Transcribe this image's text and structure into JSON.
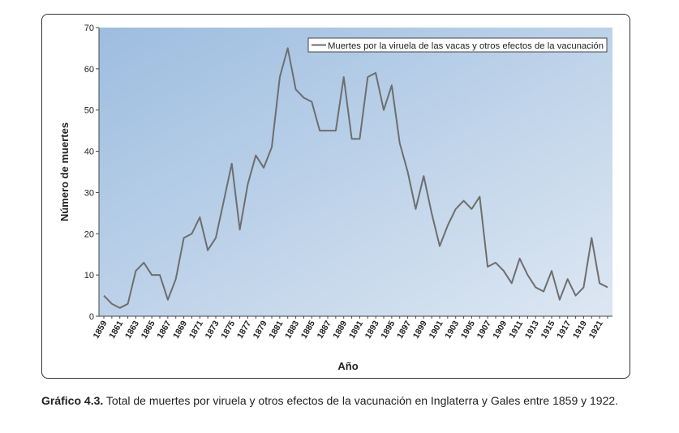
{
  "chart_data": {
    "type": "line",
    "legend": "Muertes por la viruela de las vacas y otros efectos de la vacunación",
    "legend_position": "top-right",
    "xlabel": "Año",
    "ylabel": "Número de muertes",
    "ylim": [
      0,
      70
    ],
    "yticks": [
      0,
      10,
      20,
      30,
      40,
      50,
      60,
      70
    ],
    "xticks": [
      "1859",
      "1861",
      "1863",
      "1865",
      "1867",
      "1869",
      "1871",
      "1873",
      "1875",
      "1877",
      "1879",
      "1881",
      "1883",
      "1885",
      "1887",
      "1889",
      "1891",
      "1893",
      "1895",
      "1897",
      "1899",
      "1901",
      "1903",
      "1905",
      "1907",
      "1909",
      "1911",
      "1913",
      "1915",
      "1917",
      "1919",
      "1921"
    ],
    "x": [
      1859,
      1860,
      1861,
      1862,
      1863,
      1864,
      1865,
      1866,
      1867,
      1868,
      1869,
      1870,
      1871,
      1872,
      1873,
      1874,
      1875,
      1876,
      1877,
      1878,
      1879,
      1880,
      1881,
      1882,
      1883,
      1884,
      1885,
      1886,
      1887,
      1888,
      1889,
      1890,
      1891,
      1892,
      1893,
      1894,
      1895,
      1896,
      1897,
      1898,
      1899,
      1900,
      1901,
      1902,
      1903,
      1904,
      1905,
      1906,
      1907,
      1908,
      1909,
      1910,
      1911,
      1912,
      1913,
      1914,
      1915,
      1916,
      1917,
      1918,
      1919,
      1920,
      1921,
      1922
    ],
    "values": [
      5,
      3,
      2,
      3,
      11,
      13,
      10,
      10,
      4,
      9,
      19,
      20,
      24,
      16,
      19,
      28,
      37,
      21,
      32,
      39,
      36,
      41,
      58,
      65,
      55,
      53,
      52,
      45,
      45,
      45,
      58,
      43,
      43,
      58,
      59,
      50,
      56,
      42,
      35,
      26,
      34,
      25,
      17,
      22,
      26,
      28,
      26,
      29,
      12,
      13,
      11,
      8,
      14,
      10,
      7,
      6,
      11,
      4,
      9,
      5,
      7,
      19,
      8,
      7
    ],
    "grid": false,
    "line_color": "#6e6e6e",
    "bg_gradient": [
      "#9dbde0",
      "#dde7f2"
    ]
  },
  "caption": {
    "label": "Gráfico 4.3.",
    "text": " Total de muertes por viruela y otros efectos de la vacunación en Inglaterra y Gales entre 1859 y 1922."
  }
}
